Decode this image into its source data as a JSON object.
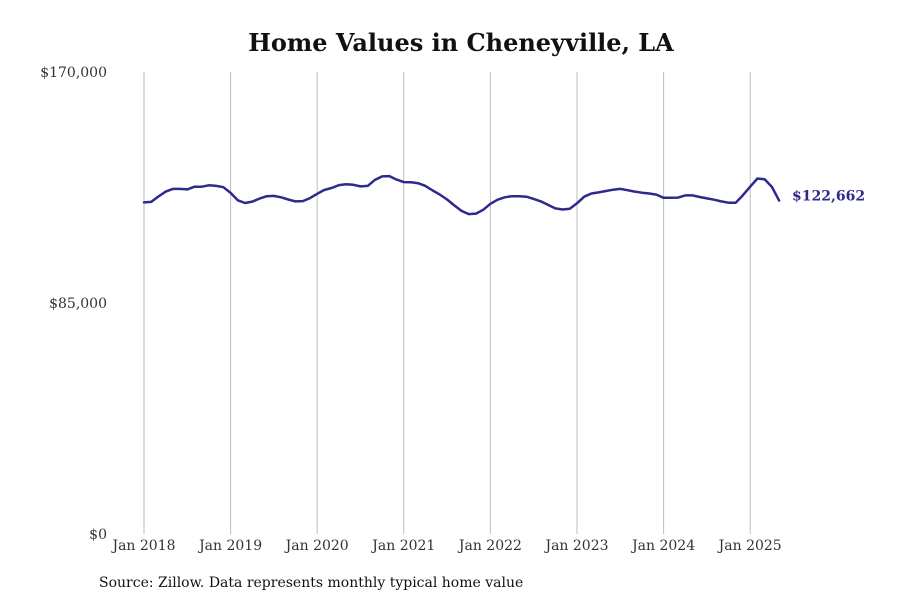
{
  "chart_data": {
    "type": "line",
    "title": "Home Values in Cheneyville, LA",
    "xlabel": "",
    "ylabel": "",
    "ylim": [
      0,
      170000
    ],
    "yticks": [
      {
        "value": 0,
        "label": "$0"
      },
      {
        "value": 85000,
        "label": "$85,000"
      },
      {
        "value": 170000,
        "label": "$170,000"
      }
    ],
    "xticks": [
      {
        "value": "2018-01",
        "label": "Jan 2018"
      },
      {
        "value": "2019-01",
        "label": "Jan 2019"
      },
      {
        "value": "2020-01",
        "label": "Jan 2020"
      },
      {
        "value": "2021-01",
        "label": "Jan 2021"
      },
      {
        "value": "2022-01",
        "label": "Jan 2022"
      },
      {
        "value": "2023-01",
        "label": "Jan 2023"
      },
      {
        "value": "2024-01",
        "label": "Jan 2024"
      },
      {
        "value": "2025-01",
        "label": "Jan 2025"
      }
    ],
    "grid": "vertical",
    "line_color": "#2e2a8c",
    "end_label": "$122,662",
    "series": [
      {
        "x": [
          "2018-01",
          "2018-02",
          "2018-03",
          "2018-04",
          "2018-05",
          "2018-06",
          "2018-07",
          "2018-08",
          "2018-09",
          "2018-10",
          "2018-11",
          "2018-12",
          "2019-01",
          "2019-02",
          "2019-03",
          "2019-04",
          "2019-05",
          "2019-06",
          "2019-07",
          "2019-08",
          "2019-09",
          "2019-10",
          "2019-11",
          "2019-12",
          "2020-01",
          "2020-02",
          "2020-03",
          "2020-04",
          "2020-05",
          "2020-06",
          "2020-07",
          "2020-08",
          "2020-09",
          "2020-10",
          "2020-11",
          "2020-12",
          "2021-01",
          "2021-02",
          "2021-03",
          "2021-04",
          "2021-05",
          "2021-06",
          "2021-07",
          "2021-08",
          "2021-09",
          "2021-10",
          "2021-11",
          "2021-12",
          "2022-01",
          "2022-02",
          "2022-03",
          "2022-04",
          "2022-05",
          "2022-06",
          "2022-07",
          "2022-08",
          "2022-09",
          "2022-10",
          "2022-11",
          "2022-12",
          "2023-01",
          "2023-02",
          "2023-03",
          "2023-04",
          "2023-05",
          "2023-06",
          "2023-07",
          "2023-08",
          "2023-09",
          "2023-10",
          "2023-11",
          "2023-12",
          "2024-01",
          "2024-02",
          "2024-03",
          "2024-04",
          "2024-05",
          "2024-06",
          "2024-07",
          "2024-08",
          "2024-09",
          "2024-10",
          "2024-11",
          "2024-12",
          "2025-01",
          "2025-02",
          "2025-03",
          "2025-04",
          "2025-05"
        ],
        "values": [
          122000,
          122200,
          124200,
          126000,
          127000,
          127000,
          126800,
          127800,
          127800,
          128300,
          128100,
          127600,
          125500,
          122800,
          121800,
          122300,
          123400,
          124300,
          124400,
          123900,
          123100,
          122400,
          122500,
          123600,
          125200,
          126600,
          127300,
          128400,
          128700,
          128500,
          127900,
          128100,
          130300,
          131600,
          131700,
          130400,
          129500,
          129400,
          129100,
          128100,
          126400,
          124900,
          123100,
          120900,
          118900,
          117700,
          117900,
          119300,
          121500,
          123000,
          123900,
          124300,
          124300,
          124100,
          123300,
          122400,
          121100,
          119800,
          119400,
          119700,
          121700,
          124100,
          125300,
          125700,
          126200,
          126700,
          127000,
          126500,
          126000,
          125600,
          125300,
          124900,
          123700,
          123700,
          123800,
          124600,
          124600,
          124000,
          123500,
          123000,
          122400,
          121900,
          121900,
          124700,
          127800,
          130800,
          130500,
          127800,
          122662
        ]
      }
    ]
  },
  "source_note": "Source: Zillow. Data represents monthly typical home value"
}
